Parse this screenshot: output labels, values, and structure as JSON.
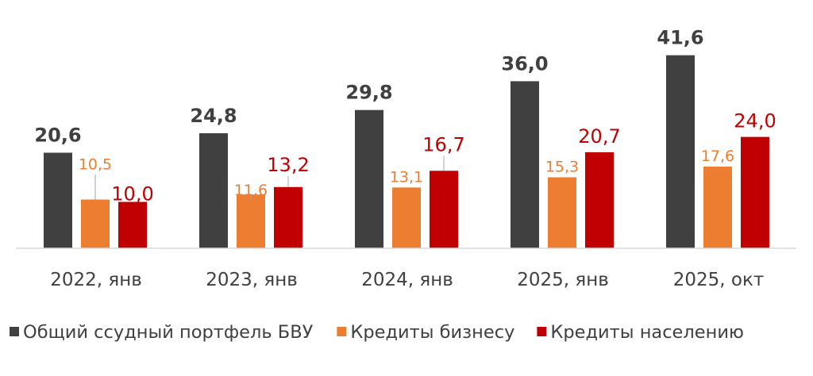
{
  "chart_data": {
    "type": "bar",
    "categories": [
      "2022, янв",
      "2023, янв",
      "2024, янв",
      "2025, янв",
      "2025, окт"
    ],
    "series": [
      {
        "name": "Общий ссудный портфель БВУ",
        "values": [
          20.6,
          24.8,
          29.8,
          36.0,
          41.6
        ],
        "labels": [
          "20,6",
          "24,8",
          "29,8",
          "36,0",
          "41,6"
        ],
        "color": "#404040",
        "label_color": "#404040"
      },
      {
        "name": "Кредиты бизнесу",
        "values": [
          10.5,
          11.6,
          13.1,
          15.3,
          17.6
        ],
        "labels": [
          "10,5",
          "11,6",
          "13,1",
          "15,3",
          "17,6"
        ],
        "color": "#ED7D31",
        "label_color": "#ED7D31"
      },
      {
        "name": "Кредиты населению",
        "values": [
          10.0,
          13.2,
          16.7,
          20.7,
          24.0
        ],
        "labels": [
          "10,0",
          "13,2",
          "16,7",
          "20,7",
          "24,0"
        ],
        "color": "#C00000",
        "label_color": "#C00000"
      }
    ],
    "ylim": [
      0,
      42
    ],
    "grid": false,
    "legend": "bottom",
    "title": "",
    "xlabel": "",
    "ylabel": ""
  }
}
